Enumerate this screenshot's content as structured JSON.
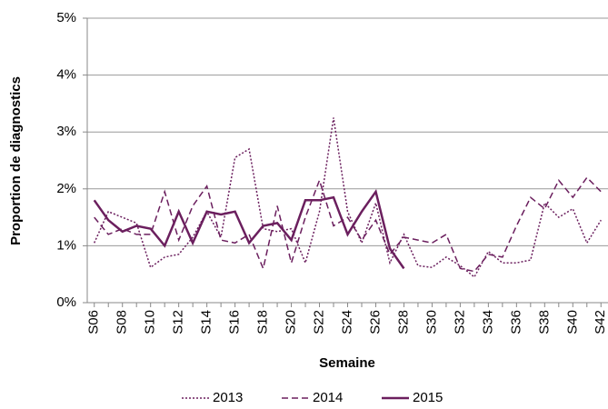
{
  "chart_data": {
    "type": "line",
    "y_label": "Proportion de diagnostics",
    "x_label": "Semaine",
    "categories": [
      "S06",
      null,
      "S08",
      null,
      "S10",
      null,
      "S12",
      null,
      "S14",
      null,
      "S16",
      null,
      "S18",
      null,
      "S20",
      null,
      "S22",
      null,
      "S24",
      null,
      "S26",
      null,
      "S28",
      null,
      "S30",
      null,
      "S32",
      null,
      "S34",
      null,
      "S36",
      null,
      "S38",
      null,
      "S40",
      null,
      "S42"
    ],
    "series": [
      {
        "name": "2013",
        "color": "#6b1f5e",
        "style": "dotted",
        "values": [
          1.05,
          1.6,
          1.5,
          1.4,
          0.62,
          0.8,
          0.85,
          1.15,
          1.6,
          1.15,
          2.55,
          2.7,
          1.3,
          1.25,
          1.3,
          0.7,
          1.6,
          3.25,
          1.6,
          1.05,
          1.75,
          0.7,
          1.2,
          0.65,
          0.62,
          0.8,
          0.65,
          0.45,
          0.9,
          0.7,
          0.7,
          0.75,
          1.75,
          1.5,
          1.65,
          1.05,
          1.45
        ]
      },
      {
        "name": "2014",
        "color": "#6b1f5e",
        "style": "dashed",
        "values": [
          1.5,
          1.2,
          1.3,
          1.2,
          1.2,
          1.95,
          1.1,
          1.7,
          2.05,
          1.1,
          1.05,
          1.2,
          0.6,
          1.7,
          0.7,
          1.5,
          2.15,
          1.35,
          1.5,
          1.1,
          1.45,
          0.85,
          1.15,
          1.1,
          1.05,
          1.2,
          0.6,
          0.55,
          0.85,
          0.8,
          1.35,
          1.85,
          1.65,
          2.15,
          1.85,
          2.2,
          1.95
        ]
      },
      {
        "name": "2015",
        "color": "#6b1f5e",
        "style": "solid",
        "values": [
          1.8,
          1.45,
          1.25,
          1.35,
          1.3,
          1.0,
          1.6,
          1.05,
          1.6,
          1.55,
          1.6,
          1.05,
          1.35,
          1.4,
          1.1,
          1.8,
          1.8,
          1.85,
          1.2,
          1.6,
          1.95,
          0.95,
          0.6,
          null,
          null,
          null,
          null,
          null,
          null,
          null,
          null,
          null,
          null,
          null,
          null,
          null,
          null
        ]
      }
    ],
    "ylim": [
      0,
      5
    ],
    "yticks": [
      {
        "value": 0,
        "label": "0%"
      },
      {
        "value": 1,
        "label": "1%"
      },
      {
        "value": 2,
        "label": "2%"
      },
      {
        "value": 3,
        "label": "3%"
      },
      {
        "value": 4,
        "label": "4%"
      },
      {
        "value": 5,
        "label": "5%"
      }
    ],
    "grid": true,
    "legend": "bottom"
  }
}
